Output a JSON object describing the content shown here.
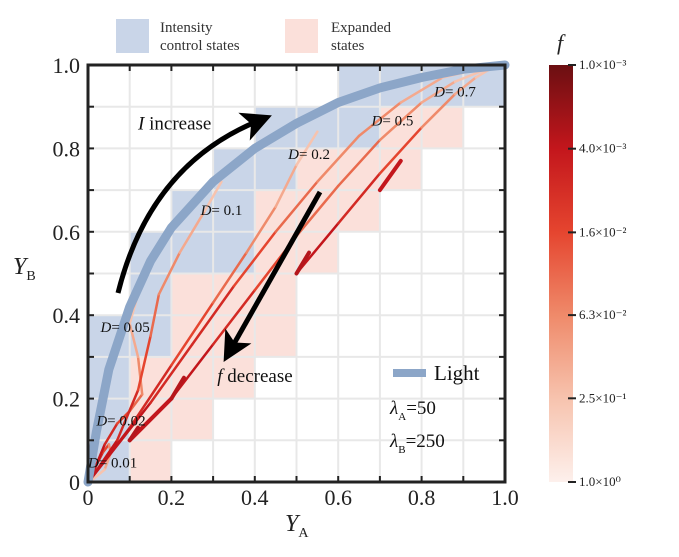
{
  "chart_data": {
    "type": "line",
    "title": "",
    "xlabel": "Y",
    "xlabel_sub": "A",
    "ylabel": "Y",
    "ylabel_sub": "B",
    "xlim": [
      0,
      1
    ],
    "ylim": [
      0,
      1
    ],
    "grid": true,
    "x_ticks": [
      0,
      0.1,
      0.2,
      0.3,
      0.4,
      0.5,
      0.6,
      0.7,
      0.8,
      0.9,
      1.0
    ],
    "x_tick_labels": [
      {
        "value": 0,
        "label": "0"
      },
      {
        "value": 0.2,
        "label": "0.2"
      },
      {
        "value": 0.4,
        "label": "0.4"
      },
      {
        "value": 0.6,
        "label": "0.6"
      },
      {
        "value": 0.8,
        "label": "0.8"
      },
      {
        "value": 1.0,
        "label": "1.0"
      }
    ],
    "y_tick_labels": [
      {
        "value": 0,
        "label": "0"
      },
      {
        "value": 0.2,
        "label": "0.2"
      },
      {
        "value": 0.4,
        "label": "0.4"
      },
      {
        "value": 0.6,
        "label": "0.6"
      },
      {
        "value": 0.8,
        "label": "0.8"
      },
      {
        "value": 1.0,
        "label": "1.0"
      }
    ],
    "cell_size": 0.1,
    "intensity_control_cells": [
      [
        0,
        0
      ],
      [
        0,
        1
      ],
      [
        0,
        2
      ],
      [
        0,
        3
      ],
      [
        1,
        3
      ],
      [
        1,
        4
      ],
      [
        1,
        5
      ],
      [
        2,
        5
      ],
      [
        2,
        6
      ],
      [
        3,
        5
      ],
      [
        3,
        6
      ],
      [
        3,
        7
      ],
      [
        4,
        7
      ],
      [
        4,
        8
      ],
      [
        5,
        8
      ],
      [
        6,
        8
      ],
      [
        6,
        9
      ],
      [
        7,
        9
      ],
      [
        8,
        9
      ],
      [
        9,
        9
      ]
    ],
    "expanded_cells": [
      [
        1,
        0
      ],
      [
        1,
        1
      ],
      [
        1,
        2
      ],
      [
        2,
        1
      ],
      [
        2,
        2
      ],
      [
        2,
        3
      ],
      [
        2,
        4
      ],
      [
        3,
        2
      ],
      [
        3,
        3
      ],
      [
        3,
        4
      ],
      [
        4,
        3
      ],
      [
        4,
        4
      ],
      [
        4,
        5
      ],
      [
        4,
        6
      ],
      [
        5,
        5
      ],
      [
        5,
        6
      ],
      [
        5,
        7
      ],
      [
        6,
        6
      ],
      [
        6,
        7
      ],
      [
        7,
        7
      ],
      [
        7,
        8
      ],
      [
        8,
        8
      ]
    ],
    "legend": {
      "placement": "top",
      "entries": [
        {
          "label_line1": "Intensity",
          "label_line2": "control states",
          "color": "#c9d5e8"
        },
        {
          "label_line1": "Expanded",
          "label_line2": "states",
          "color": "#fbe0da"
        }
      ]
    },
    "light_curve": {
      "name": "Light",
      "color": "#8ca6c8",
      "points": [
        [
          0,
          0
        ],
        [
          0.02,
          0.12
        ],
        [
          0.05,
          0.27
        ],
        [
          0.1,
          0.42
        ],
        [
          0.15,
          0.53
        ],
        [
          0.2,
          0.61
        ],
        [
          0.3,
          0.72
        ],
        [
          0.4,
          0.8
        ],
        [
          0.5,
          0.86
        ],
        [
          0.6,
          0.91
        ],
        [
          0.7,
          0.945
        ],
        [
          0.8,
          0.97
        ],
        [
          0.9,
          0.99
        ],
        [
          1.0,
          1.0
        ]
      ]
    },
    "light_params": [
      {
        "symbol": "λ",
        "sub": "A",
        "value": "=50"
      },
      {
        "symbol": "λ",
        "sub": "B",
        "value": "=250"
      }
    ],
    "series": [
      {
        "name": "D=0.01",
        "label": "D= 0.01",
        "label_at": [
          0.0,
          0.035
        ],
        "points": [
          [
            0.005,
            0.005
          ],
          [
            0.02,
            0.04
          ],
          [
            0.035,
            0.07
          ],
          [
            0.05,
            0.09
          ],
          [
            0.055,
            0.07
          ],
          [
            0.04,
            0.03
          ],
          [
            0.01,
            0.005
          ]
        ],
        "f_start": 0.001
      },
      {
        "name": "D=0.02",
        "label": "D= 0.02",
        "label_at": [
          0.02,
          0.135
        ],
        "points": [
          [
            0.005,
            0.005
          ],
          [
            0.04,
            0.09
          ],
          [
            0.07,
            0.14
          ],
          [
            0.1,
            0.17
          ],
          [
            0.13,
            0.21
          ],
          [
            0.12,
            0.3
          ],
          [
            0.1,
            0.38
          ],
          [
            0.12,
            0.45
          ]
        ],
        "f_start": 0.001
      },
      {
        "name": "D=0.05",
        "label": "D= 0.05",
        "label_at": [
          0.03,
          0.36
        ],
        "points": [
          [
            0.005,
            0.005
          ],
          [
            0.07,
            0.1
          ],
          [
            0.12,
            0.22
          ],
          [
            0.15,
            0.35
          ],
          [
            0.17,
            0.45
          ],
          [
            0.22,
            0.55
          ],
          [
            0.28,
            0.65
          ],
          [
            0.32,
            0.72
          ]
        ],
        "f_start": 0.001
      },
      {
        "name": "D=0.1",
        "label": "D= 0.1",
        "label_at": [
          0.27,
          0.64
        ],
        "points": [
          [
            0.005,
            0.005
          ],
          [
            0.1,
            0.13
          ],
          [
            0.2,
            0.28
          ],
          [
            0.3,
            0.43
          ],
          [
            0.38,
            0.55
          ],
          [
            0.45,
            0.66
          ],
          [
            0.5,
            0.76
          ],
          [
            0.55,
            0.84
          ]
        ],
        "f_start": 0.001
      },
      {
        "name": "D=0.2",
        "label": "D= 0.2",
        "label_at": [
          0.48,
          0.775
        ],
        "points": [
          [
            0.005,
            0.005
          ],
          [
            0.15,
            0.19
          ],
          [
            0.25,
            0.33
          ],
          [
            0.35,
            0.47
          ],
          [
            0.45,
            0.6
          ],
          [
            0.55,
            0.72
          ],
          [
            0.65,
            0.83
          ],
          [
            0.75,
            0.91
          ],
          [
            0.85,
            0.97
          ],
          [
            0.98,
            1.0
          ]
        ],
        "f_start": 0.001
      },
      {
        "name": "D=0.5",
        "label": "D= 0.5",
        "label_at": [
          0.68,
          0.855
        ],
        "points": [
          [
            0.2,
            0.2
          ],
          [
            0.3,
            0.33
          ],
          [
            0.4,
            0.46
          ],
          [
            0.5,
            0.59
          ],
          [
            0.6,
            0.71
          ],
          [
            0.7,
            0.82
          ],
          [
            0.8,
            0.91
          ],
          [
            0.88,
            0.96
          ],
          [
            0.98,
            1.0
          ]
        ],
        "f_start": 0.001
      },
      {
        "name": "D=0.7",
        "label": "D= 0.7",
        "label_at": [
          0.83,
          0.925
        ],
        "points": [
          [
            0.5,
            0.5
          ],
          [
            0.6,
            0.62
          ],
          [
            0.7,
            0.74
          ],
          [
            0.8,
            0.85
          ],
          [
            0.88,
            0.93
          ],
          [
            0.93,
            0.97
          ],
          [
            0.98,
            1.0
          ]
        ],
        "f_start": 0.001
      },
      {
        "name": "segment-A",
        "label": "",
        "label_at": null,
        "points": [
          [
            0.1,
            0.1
          ],
          [
            0.2,
            0.2
          ]
        ],
        "f_start": 0.001
      },
      {
        "name": "segment-B",
        "label": "",
        "label_at": null,
        "points": [
          [
            0.7,
            0.7
          ],
          [
            0.75,
            0.77
          ]
        ],
        "f_start": 0.001
      }
    ],
    "annotations": [
      {
        "text_italic": "I",
        "text": " increase",
        "at": [
          0.12,
          0.845
        ]
      },
      {
        "text_italic": "f",
        "text": " decrease",
        "at": [
          0.31,
          0.24
        ]
      }
    ],
    "colorbar": {
      "title": "f",
      "scale": "log",
      "range": [
        0.001,
        1.0
      ],
      "ticks": [
        {
          "value": 0.001,
          "label": "1.0×10⁻³"
        },
        {
          "value": 0.004,
          "label": "4.0×10⁻³"
        },
        {
          "value": 0.016,
          "label": "1.6×10⁻²"
        },
        {
          "value": 0.063,
          "label": "6.3×10⁻²"
        },
        {
          "value": 0.25,
          "label": "2.5×10⁻¹"
        },
        {
          "value": 1.0,
          "label": "1.0×10⁰"
        }
      ],
      "colors": [
        "#fdf0ec",
        "#f7c3ae",
        "#ef8a6a",
        "#e5452f",
        "#c3161c",
        "#6b0f12"
      ]
    }
  }
}
